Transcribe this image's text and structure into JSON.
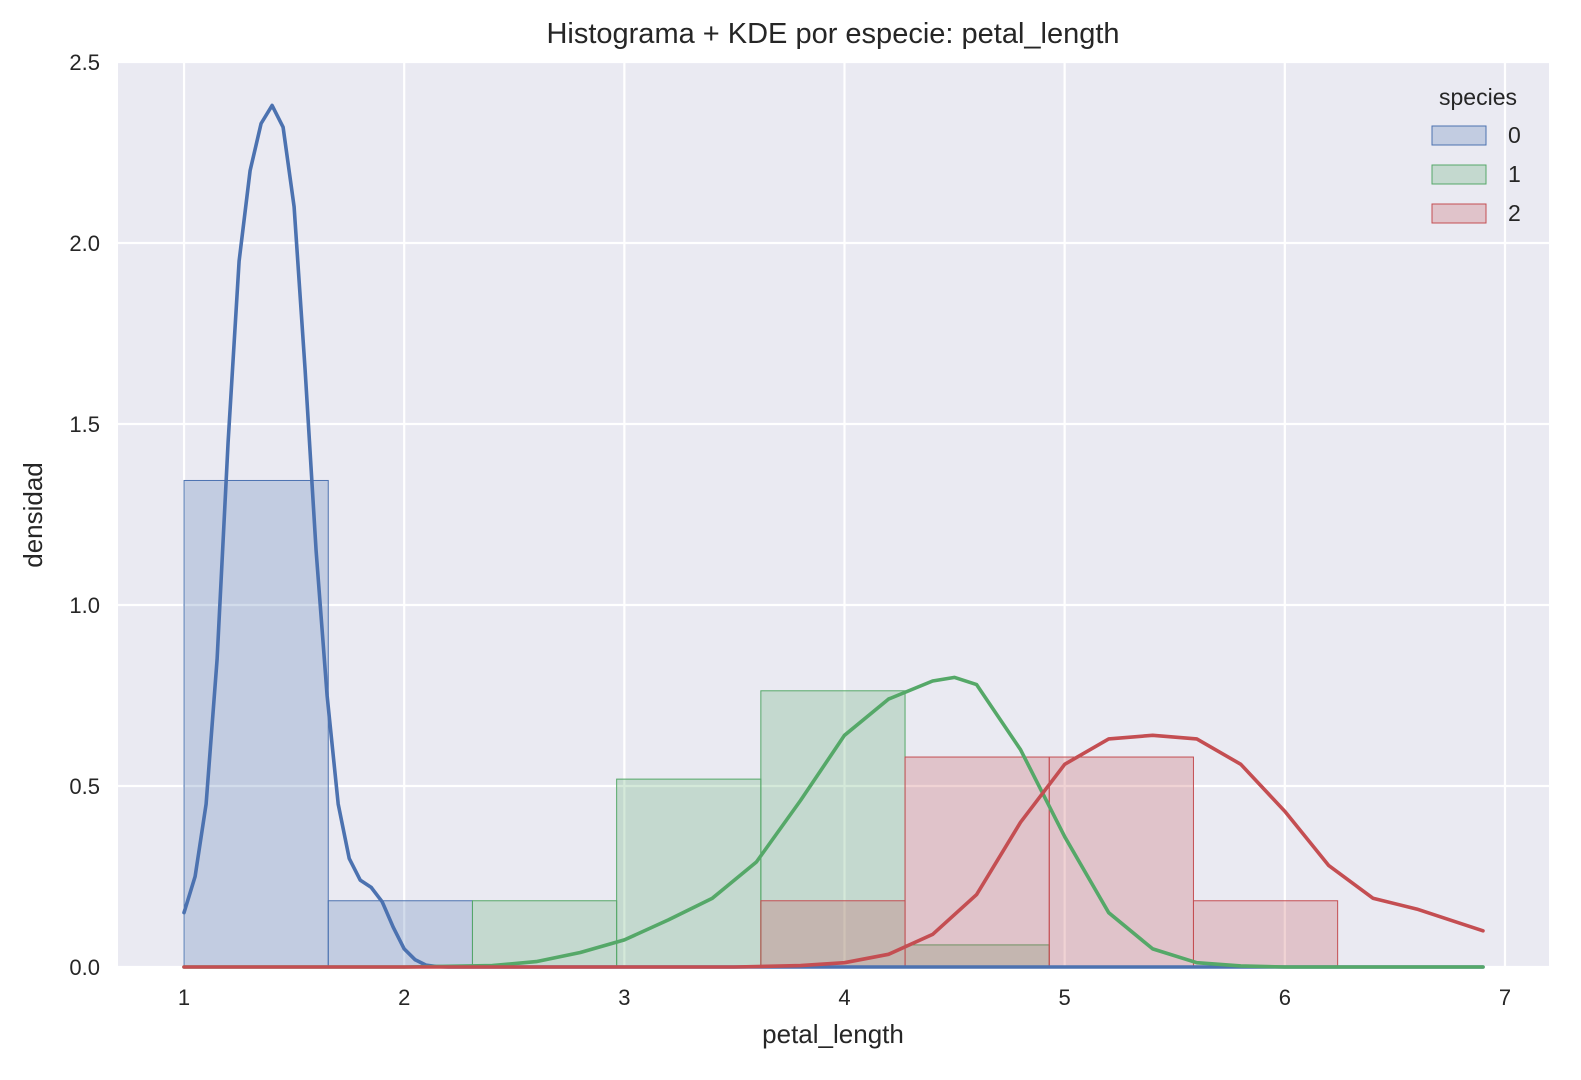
{
  "chart_data": {
    "type": "histogram+kde",
    "title": "Histograma + KDE por especie: petal_length",
    "xlabel": "petal_length",
    "ylabel": "densidad",
    "xlim": [
      0.7,
      7.2
    ],
    "ylim": [
      0,
      2.5
    ],
    "xticks": [
      1,
      2,
      3,
      4,
      5,
      6,
      7
    ],
    "yticks": [
      0.0,
      0.5,
      1.0,
      1.5,
      2.0,
      2.5
    ],
    "ytick_labels": [
      "0.0",
      "0.5",
      "1.0",
      "1.5",
      "2.0",
      "2.5"
    ],
    "grid": true,
    "background": "#EAEAF2",
    "legend": {
      "title": "species",
      "position": "top-right"
    },
    "bin_edges": [
      1.0,
      1.655,
      2.31,
      2.965,
      3.62,
      4.275,
      4.93,
      5.585,
      6.24,
      6.895
    ],
    "series": [
      {
        "name": "0",
        "color": "#4C72B0",
        "hist": [
          1.344,
          0.183,
          0,
          0,
          0,
          0,
          0,
          0,
          0
        ],
        "kde_x": [
          1.0,
          1.05,
          1.1,
          1.15,
          1.2,
          1.25,
          1.3,
          1.35,
          1.4,
          1.45,
          1.5,
          1.55,
          1.6,
          1.65,
          1.7,
          1.75,
          1.8,
          1.85,
          1.9,
          1.95,
          2.0,
          2.05,
          2.1,
          2.15,
          2.2,
          2.5,
          3.0,
          4.0,
          5.0,
          6.0,
          6.9
        ],
        "kde_y": [
          0.15,
          0.25,
          0.45,
          0.85,
          1.45,
          1.95,
          2.2,
          2.33,
          2.38,
          2.32,
          2.1,
          1.65,
          1.15,
          0.75,
          0.45,
          0.3,
          0.24,
          0.22,
          0.18,
          0.11,
          0.05,
          0.02,
          0.005,
          0.001,
          0.0,
          0.0,
          0.0,
          0.0,
          0.0,
          0.0,
          0.0
        ]
      },
      {
        "name": "1",
        "color": "#55A868",
        "hist": [
          0,
          0,
          0.183,
          0.519,
          0.763,
          0.061,
          0,
          0,
          0
        ],
        "kde_x": [
          1.0,
          2.0,
          2.4,
          2.6,
          2.8,
          3.0,
          3.2,
          3.4,
          3.6,
          3.8,
          4.0,
          4.2,
          4.4,
          4.5,
          4.6,
          4.8,
          5.0,
          5.2,
          5.4,
          5.6,
          5.8,
          6.0,
          6.9
        ],
        "kde_y": [
          0.0,
          0.0,
          0.004,
          0.015,
          0.04,
          0.075,
          0.13,
          0.19,
          0.29,
          0.46,
          0.64,
          0.74,
          0.79,
          0.8,
          0.78,
          0.6,
          0.36,
          0.15,
          0.05,
          0.012,
          0.003,
          0.0,
          0.0
        ]
      },
      {
        "name": "2",
        "color": "#C44E52",
        "hist": [
          0,
          0,
          0,
          0,
          0.183,
          0.58,
          0.58,
          0.183,
          0
        ],
        "kde_x": [
          1.0,
          3.5,
          3.8,
          4.0,
          4.2,
          4.4,
          4.6,
          4.8,
          5.0,
          5.2,
          5.4,
          5.6,
          5.8,
          6.0,
          6.2,
          6.4,
          6.6,
          6.8,
          6.9
        ],
        "kde_y": [
          0.0,
          0.0,
          0.004,
          0.012,
          0.035,
          0.09,
          0.2,
          0.4,
          0.56,
          0.63,
          0.64,
          0.63,
          0.56,
          0.43,
          0.28,
          0.19,
          0.16,
          0.12,
          0.1
        ]
      }
    ]
  }
}
